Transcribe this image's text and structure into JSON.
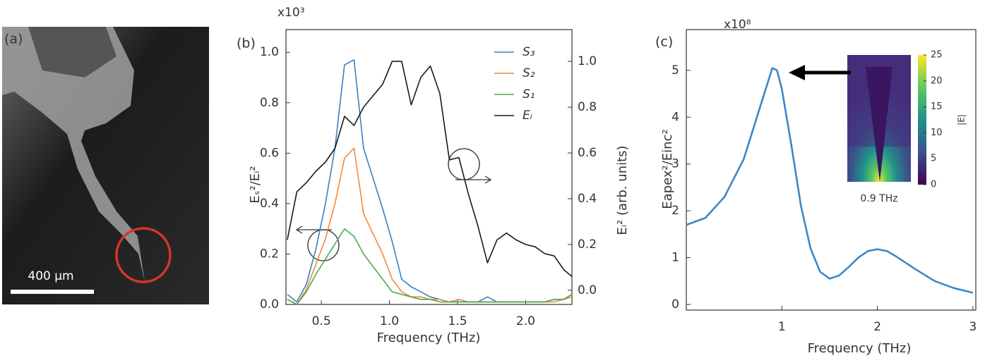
{
  "image_panel": {
    "panel_label": "(a)",
    "scale_bar_label": "400 µm"
  },
  "chart_data": [
    {
      "type": "line",
      "panel_label": "(b)",
      "multiplier": "x10³",
      "xlabel": "Frequency (THz)",
      "ylabel": "Eₛ²/Eᵢ²",
      "y2label": "Eᵢ² (arb. units)",
      "x": [
        0.25,
        0.32,
        0.39,
        0.46,
        0.53,
        0.6,
        0.67,
        0.74,
        0.81,
        0.88,
        0.95,
        1.02,
        1.09,
        1.16,
        1.23,
        1.3,
        1.37,
        1.44,
        1.51,
        1.58,
        1.65,
        1.72,
        1.79,
        1.86,
        1.93,
        2.0,
        2.07,
        2.14,
        2.21,
        2.28,
        2.34
      ],
      "xlim": [
        0.24,
        2.34
      ],
      "xticks": [
        0.5,
        {
          "value": 1.0,
          "label": "1.0"
        },
        1.5,
        {
          "value": 2.0,
          "label": "2.0"
        }
      ],
      "ylim": [
        0,
        1.09
      ],
      "yticks": [
        {
          "value": 0,
          "label": "0.0"
        },
        0.2,
        0.4,
        0.6,
        0.8,
        {
          "value": 1.0,
          "label": "1.0"
        }
      ],
      "y2lim": [
        -0.062,
        1.139
      ],
      "y2ticks": [
        {
          "value": 0,
          "label": "0.0"
        },
        0.2,
        0.4,
        0.6,
        0.8,
        {
          "value": 1.0,
          "label": "1.0"
        }
      ],
      "legend": "upper right",
      "series": [
        {
          "name": "S₃",
          "color": "#3d7fbf",
          "values": [
            0.04,
            0.01,
            0.08,
            0.22,
            0.4,
            0.62,
            0.95,
            0.97,
            0.62,
            0.5,
            0.38,
            0.25,
            0.1,
            0.07,
            0.05,
            0.03,
            0.02,
            0.01,
            0.01,
            0.01,
            0.01,
            0.03,
            0.01,
            0.01,
            0.01,
            0.01,
            0.01,
            0.01,
            0.02,
            0.02,
            0.04
          ]
        },
        {
          "name": "S₂",
          "color": "#f08a3c",
          "values": [
            0.02,
            0.0,
            0.06,
            0.16,
            0.26,
            0.4,
            0.58,
            0.62,
            0.36,
            0.28,
            0.2,
            0.1,
            0.05,
            0.03,
            0.03,
            0.02,
            0.02,
            0.01,
            0.02,
            0.01,
            0.01,
            0.01,
            0.01,
            0.01,
            0.01,
            0.01,
            0.01,
            0.01,
            0.01,
            0.02,
            0.03
          ]
        },
        {
          "name": "S₁",
          "color": "#4caa4c",
          "values": [
            0.02,
            0.0,
            0.05,
            0.12,
            0.18,
            0.24,
            0.3,
            0.27,
            0.2,
            0.15,
            0.1,
            0.05,
            0.04,
            0.03,
            0.02,
            0.02,
            0.01,
            0.01,
            0.01,
            0.01,
            0.01,
            0.01,
            0.01,
            0.01,
            0.01,
            0.01,
            0.01,
            0.01,
            0.02,
            0.02,
            0.04
          ]
        },
        {
          "name": "Eᵢ",
          "color": "#1a1a1a",
          "axis": "y2",
          "values": [
            0.22,
            0.43,
            0.47,
            0.52,
            0.56,
            0.62,
            0.76,
            0.72,
            0.8,
            0.85,
            0.9,
            1.0,
            1.0,
            0.81,
            0.93,
            0.98,
            0.86,
            0.57,
            0.58,
            0.42,
            0.28,
            0.12,
            0.22,
            0.25,
            0.22,
            0.2,
            0.19,
            0.16,
            0.15,
            0.09,
            0.06
          ]
        }
      ]
    },
    {
      "type": "line",
      "panel_label": "(c)",
      "multiplier": "x10⁸",
      "xlabel": "Frequency (THz)",
      "ylabel": "Eapex²/Einc²",
      "x": [
        0.0,
        0.2,
        0.4,
        0.6,
        0.8,
        0.9,
        0.95,
        1.0,
        1.1,
        1.2,
        1.3,
        1.4,
        1.5,
        1.6,
        1.7,
        1.8,
        1.9,
        2.0,
        2.1,
        2.2,
        2.4,
        2.6,
        2.8,
        3.0
      ],
      "values": [
        1.7,
        1.85,
        2.3,
        3.1,
        4.4,
        5.05,
        5.0,
        4.6,
        3.4,
        2.1,
        1.2,
        0.7,
        0.55,
        0.62,
        0.8,
        1.0,
        1.14,
        1.18,
        1.14,
        1.02,
        0.75,
        0.5,
        0.35,
        0.25
      ],
      "color": "#3d87c8",
      "xlim": [
        0,
        3.03
      ],
      "xticks": [
        1,
        2,
        3
      ],
      "ylim": [
        -0.12,
        5.87
      ],
      "yticks": [
        0,
        1,
        2,
        3,
        4,
        5
      ],
      "inset": {
        "caption": "0.9 THz",
        "colorbar_label": "|E|",
        "clim": [
          0,
          25
        ],
        "colorbar_ticks": [
          0,
          5,
          10,
          15,
          20,
          25
        ]
      }
    }
  ]
}
